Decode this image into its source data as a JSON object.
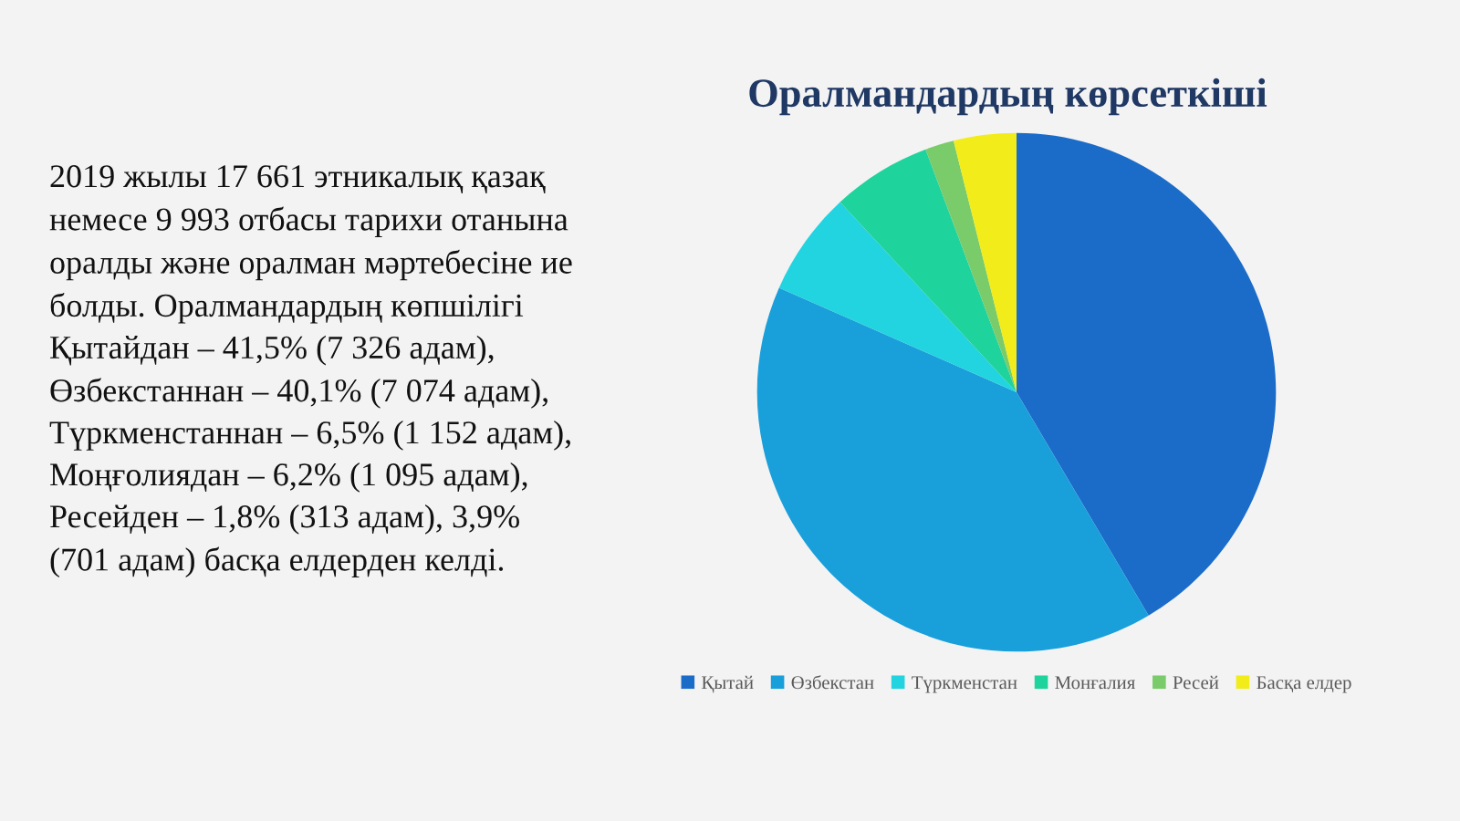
{
  "chart_data": {
    "type": "pie",
    "title": "Оралмандардың көрсеткіші",
    "categories": [
      "Қытай",
      "Өзбекстан",
      "Түркменстан",
      "Монғалия",
      "Ресей",
      "Басқа елдер"
    ],
    "values": [
      41.5,
      40.1,
      6.5,
      6.2,
      1.8,
      3.9
    ],
    "colors": [
      "#1b6cc9",
      "#199fda",
      "#22d3e0",
      "#1fd39c",
      "#7acb6a",
      "#f2ec1a"
    ],
    "legend": "bottom",
    "annotations": [
      "2019 жылы 17 661 этникалық қазақ немесе 9 993 отбасы тарихи отанына оралды және оралман мәртебесіне ие болды. Оралмандардың көпшілігі Қытайдан – 41,5% (7 326 адам), Өзбекстаннан – 40,1% (7 074 адам), Түркменстаннан – 6,5% (1 152 адам), Моңғолиядан – 6,2% (1 095 адам), Ресейден – 1,8% (313 адам), 3,9% (701 адам) басқа елдерден келді."
    ]
  }
}
